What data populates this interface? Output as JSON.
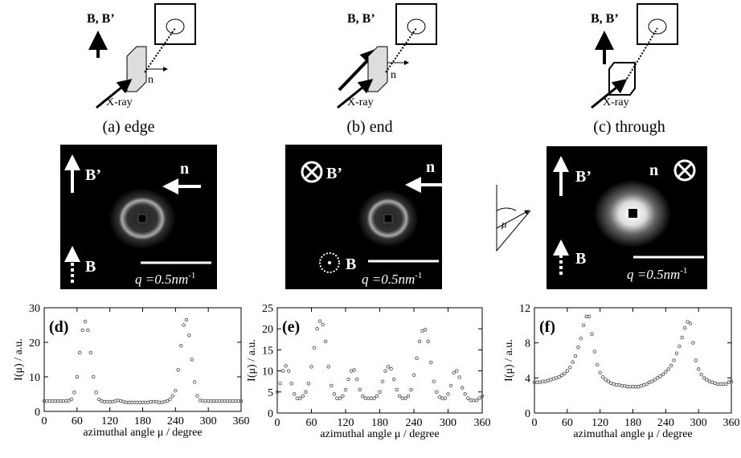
{
  "diagrams": [
    {
      "field_label": "B, B’",
      "normal_label": "n",
      "beam_label": "X-ray",
      "caption": "(a) edge"
    },
    {
      "field_label": "B, B’",
      "normal_label": "n",
      "beam_label": "X-ray",
      "caption": "(b) end"
    },
    {
      "field_label": "B, B’",
      "beam_label": "X-ray",
      "caption": "(c) through"
    }
  ],
  "patterns": [
    {
      "field_label": "B’",
      "normal_label": "n",
      "magnet_label": "B",
      "scale_label": "q =0.5nm",
      "scale_exponent": "-1"
    },
    {
      "field_label": "B’",
      "normal_label": "n",
      "magnet_label": "B",
      "scale_label": "q =0.5nm",
      "scale_exponent": "-1"
    },
    {
      "field_label": "B’",
      "normal_label": "n",
      "magnet_label": "B",
      "scale_label": "q =0.5nm",
      "scale_exponent": "-1"
    }
  ],
  "angle_diagram": {
    "label": "μ"
  },
  "chart_data": [
    {
      "type": "scatter",
      "panel_label": "(d)",
      "ylabel": "I(μ) / a.u.",
      "xlabel": "azimuthal angle  μ / degree",
      "color": "#555555",
      "xlim": [
        0,
        360
      ],
      "ylim": [
        0,
        30
      ],
      "xticks": [
        0,
        60,
        120,
        180,
        240,
        300,
        360
      ],
      "yticks": [
        0,
        10,
        20,
        30
      ],
      "x": [
        0,
        5,
        10,
        15,
        20,
        25,
        30,
        35,
        40,
        45,
        50,
        55,
        60,
        65,
        70,
        75,
        80,
        85,
        90,
        95,
        100,
        105,
        110,
        115,
        120,
        125,
        130,
        135,
        140,
        145,
        150,
        155,
        160,
        165,
        170,
        175,
        180,
        185,
        190,
        195,
        200,
        205,
        210,
        215,
        220,
        225,
        230,
        235,
        240,
        245,
        250,
        255,
        260,
        265,
        270,
        275,
        280,
        285,
        290,
        295,
        300,
        305,
        310,
        315,
        320,
        325,
        330,
        335,
        340,
        345,
        350,
        355,
        360
      ],
      "values": [
        3,
        3,
        3,
        3,
        3,
        3,
        3,
        3,
        3,
        3.1,
        3.5,
        5.5,
        10,
        17,
        23.5,
        26,
        23.5,
        17,
        10,
        5.5,
        3.5,
        3,
        2.8,
        2.8,
        2.8,
        2.8,
        3,
        3.2,
        3,
        2.8,
        2.6,
        2.6,
        2.6,
        2.6,
        2.6,
        2.6,
        2.6,
        2.6,
        2.6,
        2.8,
        2.8,
        2.8,
        2.6,
        2.6,
        2.8,
        3,
        3.5,
        4.5,
        6,
        12,
        19,
        25,
        26.5,
        22,
        15,
        8.5,
        4.5,
        3.2,
        3,
        3,
        3,
        3,
        3,
        3,
        3,
        3,
        3,
        3,
        3,
        3,
        3,
        3,
        3
      ]
    },
    {
      "type": "scatter",
      "panel_label": "(e)",
      "ylabel": "I(μ) / a.u.",
      "xlabel": "azimuthal angle  μ / degree",
      "color": "#555555",
      "xlim": [
        0,
        360
      ],
      "ylim": [
        0,
        25
      ],
      "xticks": [
        0,
        60,
        120,
        180,
        240,
        300,
        360
      ],
      "yticks": [
        0,
        5,
        10,
        15,
        20,
        25
      ],
      "x": [
        0,
        5,
        10,
        15,
        20,
        25,
        30,
        35,
        40,
        45,
        50,
        55,
        60,
        65,
        70,
        75,
        80,
        85,
        90,
        95,
        100,
        105,
        110,
        115,
        120,
        125,
        130,
        135,
        140,
        145,
        150,
        155,
        160,
        165,
        170,
        175,
        180,
        185,
        190,
        195,
        200,
        205,
        210,
        215,
        220,
        225,
        230,
        235,
        240,
        245,
        250,
        255,
        260,
        265,
        270,
        275,
        280,
        285,
        290,
        295,
        300,
        305,
        310,
        315,
        320,
        325,
        330,
        335,
        340,
        345,
        350,
        355,
        360
      ],
      "values": [
        5,
        7,
        10,
        11.2,
        10,
        7,
        4.5,
        3.5,
        3.5,
        4,
        5,
        7,
        11,
        15.5,
        20,
        21.8,
        21,
        17,
        11,
        6.5,
        4.5,
        3.5,
        3.5,
        4,
        5.5,
        8,
        10,
        10.2,
        8,
        5.5,
        4,
        3.5,
        3.5,
        3.5,
        3.5,
        4,
        5,
        7.5,
        10,
        11,
        10.5,
        8,
        5.5,
        4,
        3.5,
        3.5,
        4,
        5.5,
        9,
        13,
        17,
        19.5,
        19.8,
        17,
        12,
        7.5,
        5,
        3.8,
        3.5,
        3.5,
        4.5,
        6.5,
        9.5,
        10,
        8.5,
        6,
        4.5,
        3.5,
        3,
        3,
        3,
        3.5,
        4
      ]
    },
    {
      "type": "scatter",
      "panel_label": "(f)",
      "ylabel": "I(μ) / a.u.",
      "xlabel": "azimuthal angle  μ / degree",
      "color": "#555555",
      "xlim": [
        0,
        360
      ],
      "ylim": [
        0,
        12
      ],
      "xticks": [
        0,
        60,
        120,
        180,
        240,
        300,
        360
      ],
      "yticks": [
        0,
        4,
        8,
        12
      ],
      "x": [
        0,
        5,
        10,
        15,
        20,
        25,
        30,
        35,
        40,
        45,
        50,
        55,
        60,
        65,
        70,
        75,
        80,
        85,
        90,
        95,
        100,
        105,
        110,
        115,
        120,
        125,
        130,
        135,
        140,
        145,
        150,
        155,
        160,
        165,
        170,
        175,
        180,
        185,
        190,
        195,
        200,
        205,
        210,
        215,
        220,
        225,
        230,
        235,
        240,
        245,
        250,
        255,
        260,
        265,
        270,
        275,
        280,
        285,
        290,
        295,
        300,
        305,
        310,
        315,
        320,
        325,
        330,
        335,
        340,
        345,
        350,
        355,
        360
      ],
      "values": [
        3.5,
        3.5,
        3.5,
        3.6,
        3.6,
        3.7,
        3.8,
        3.9,
        4,
        4.1,
        4.3,
        4.5,
        4.8,
        5.2,
        5.8,
        6.5,
        7.5,
        8.5,
        10,
        11,
        11,
        9,
        7,
        5.5,
        4.6,
        4.1,
        3.8,
        3.6,
        3.4,
        3.3,
        3.2,
        3.2,
        3.1,
        3.1,
        3,
        3,
        3,
        3,
        3,
        3.1,
        3.2,
        3.3,
        3.5,
        3.6,
        3.8,
        4,
        4.2,
        4.4,
        4.7,
        5,
        5.4,
        6,
        6.8,
        7.6,
        8.6,
        9.7,
        10.4,
        10.2,
        8,
        6,
        5,
        4.4,
        4,
        3.8,
        3.6,
        3.5,
        3.4,
        3.3,
        3.3,
        3.3,
        3.3,
        3.5,
        3.6
      ]
    }
  ]
}
